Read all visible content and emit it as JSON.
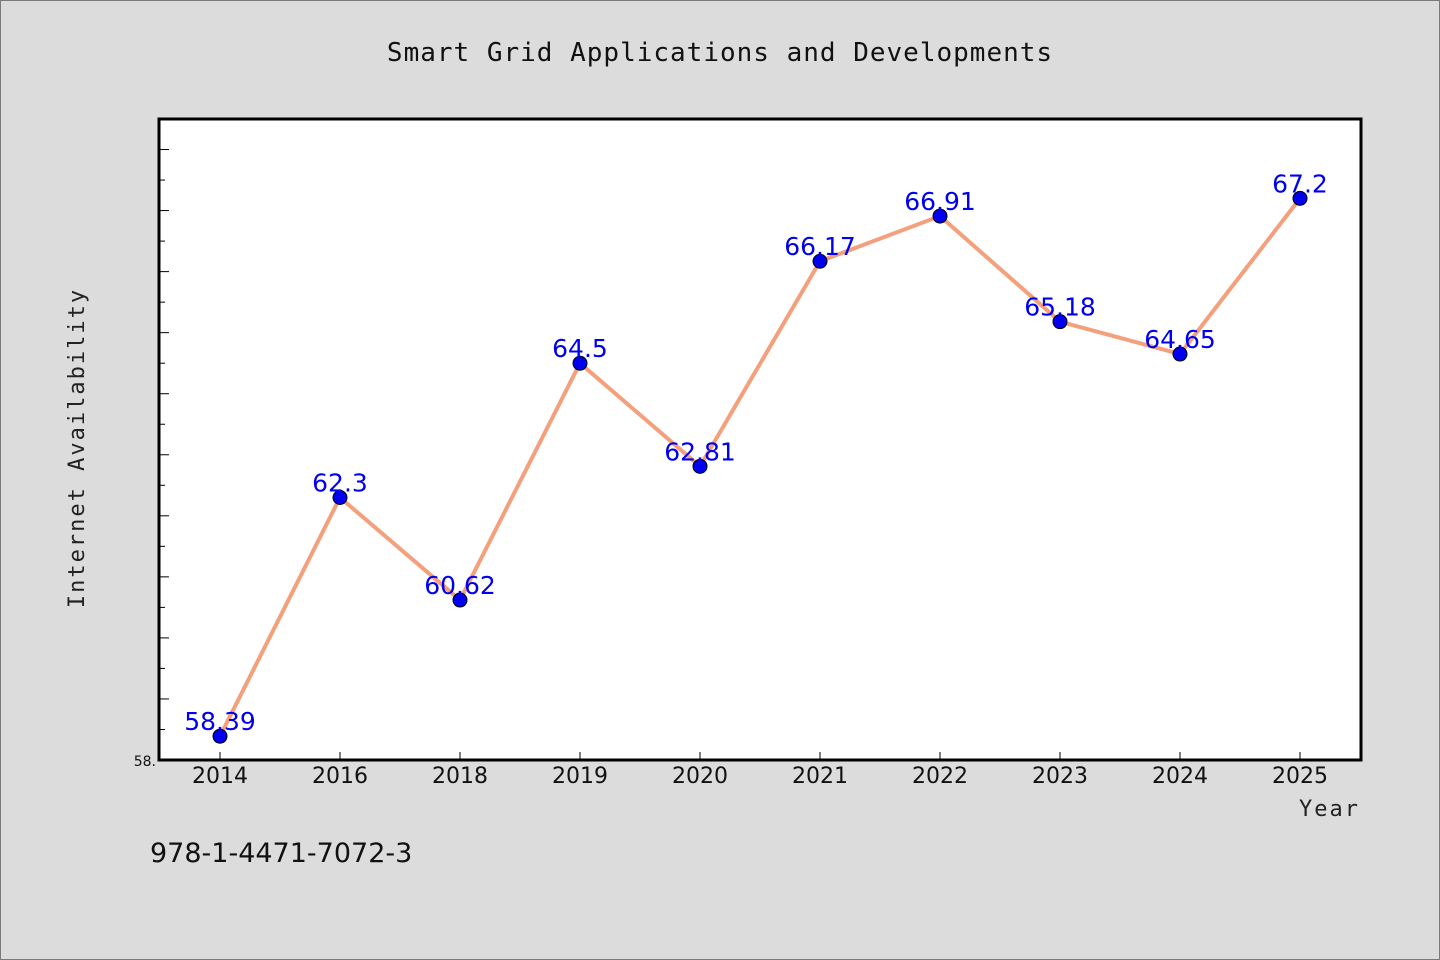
{
  "chart_data": {
    "type": "line",
    "title": "Smart Grid Applications and Developments",
    "xlabel": "Year",
    "ylabel": "Internet Availability",
    "categories": [
      "2014",
      "2016",
      "2018",
      "2019",
      "2020",
      "2021",
      "2022",
      "2023",
      "2024",
      "2025"
    ],
    "series": [
      {
        "values": [
          58.39,
          62.3,
          60.62,
          64.5,
          62.81,
          66.17,
          66.91,
          65.18,
          64.65,
          67.2
        ],
        "labels": [
          "58.39",
          "62.3",
          "60.62",
          "64.5",
          "62.81",
          "66.17",
          "66.91",
          "65.18",
          "64.65",
          "67.2"
        ]
      }
    ],
    "ylim": [
      58.0,
      68.5
    ],
    "y_tick_label": "58.",
    "grid": false,
    "line_color": "#f4a07c",
    "marker_color": "#0000ee",
    "label_color": "#0000ee"
  },
  "footer": {
    "isbn": "978-1-4471-7072-3"
  }
}
